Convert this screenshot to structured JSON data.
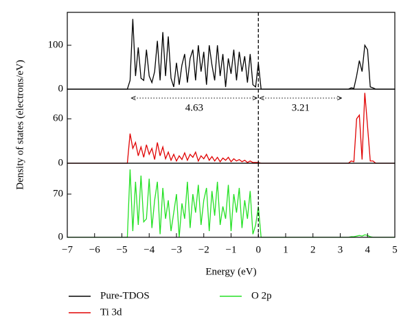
{
  "chart_data": [
    {
      "type": "line",
      "ylabel": "Density of states (electrons/eV)",
      "x": [
        -7,
        -4.8,
        -4.7,
        -4.6,
        -4.5,
        -4.4,
        -4.3,
        -4.2,
        -4.1,
        -4.0,
        -3.9,
        -3.8,
        -3.7,
        -3.6,
        -3.5,
        -3.4,
        -3.3,
        -3.2,
        -3.1,
        -3.0,
        -2.9,
        -2.8,
        -2.7,
        -2.6,
        -2.5,
        -2.4,
        -2.3,
        -2.2,
        -2.1,
        -2.0,
        -1.9,
        -1.8,
        -1.7,
        -1.6,
        -1.5,
        -1.4,
        -1.3,
        -1.2,
        -1.1,
        -1.0,
        -0.9,
        -0.8,
        -0.7,
        -0.6,
        -0.5,
        -0.4,
        -0.3,
        -0.2,
        -0.1,
        0,
        0.1,
        3.3,
        3.4,
        3.5,
        3.6,
        3.7,
        3.8,
        3.9,
        4.0,
        4.1,
        4.2,
        4.3,
        5
      ],
      "series": [
        {
          "name": "Pure-TDOS",
          "color": "#000000",
          "values": [
            0,
            0,
            20,
            160,
            30,
            95,
            25,
            20,
            90,
            30,
            15,
            40,
            110,
            20,
            130,
            30,
            120,
            25,
            5,
            60,
            10,
            55,
            80,
            15,
            70,
            90,
            20,
            100,
            40,
            85,
            10,
            100,
            55,
            20,
            100,
            30,
            80,
            5,
            70,
            35,
            90,
            20,
            85,
            40,
            75,
            15,
            80,
            10,
            5,
            60,
            0,
            0,
            3,
            2,
            30,
            65,
            40,
            100,
            90,
            5,
            3,
            0,
            0
          ]
        }
      ],
      "xlim": [
        -7,
        5
      ],
      "ylim": [
        0,
        175
      ],
      "yticks": [
        0,
        100
      ],
      "vline": 0
    },
    {
      "type": "line",
      "x": [
        -7,
        -4.8,
        -4.7,
        -4.6,
        -4.5,
        -4.4,
        -4.3,
        -4.2,
        -4.1,
        -4.0,
        -3.9,
        -3.8,
        -3.7,
        -3.6,
        -3.5,
        -3.4,
        -3.3,
        -3.2,
        -3.1,
        -3.0,
        -2.9,
        -2.8,
        -2.7,
        -2.6,
        -2.5,
        -2.4,
        -2.3,
        -2.2,
        -2.1,
        -2.0,
        -1.9,
        -1.8,
        -1.7,
        -1.6,
        -1.5,
        -1.4,
        -1.3,
        -1.2,
        -1.1,
        -1.0,
        -0.9,
        -0.8,
        -0.7,
        -0.6,
        -0.5,
        -0.4,
        -0.3,
        -0.2,
        -0.1,
        0,
        0.1,
        3.3,
        3.4,
        3.5,
        3.6,
        3.7,
        3.8,
        3.9,
        4.0,
        4.1,
        4.2,
        4.3,
        5
      ],
      "series": [
        {
          "name": "Ti 3d",
          "color": "#e00000",
          "values": [
            0,
            0,
            40,
            20,
            28,
            10,
            22,
            8,
            25,
            12,
            20,
            5,
            28,
            10,
            22,
            6,
            15,
            4,
            12,
            3,
            10,
            5,
            14,
            4,
            12,
            8,
            15,
            3,
            10,
            6,
            12,
            4,
            9,
            3,
            8,
            2,
            7,
            4,
            8,
            2,
            6,
            3,
            5,
            2,
            4,
            1,
            3,
            1,
            1,
            1,
            0,
            0,
            3,
            2,
            60,
            65,
            5,
            95,
            50,
            3,
            3,
            0,
            0
          ]
        }
      ],
      "xlim": [
        -7,
        5
      ],
      "ylim": [
        0,
        100
      ],
      "yticks": [
        0,
        60
      ],
      "vline": 0,
      "annotations": [
        {
          "text": "4.63",
          "x": [
            -4.7,
            0
          ]
        },
        {
          "text": "3.21",
          "x": [
            0,
            3.1
          ]
        }
      ]
    },
    {
      "type": "line",
      "xlabel": "Energy (eV)",
      "x": [
        -7,
        -4.8,
        -4.7,
        -4.6,
        -4.5,
        -4.4,
        -4.3,
        -4.2,
        -4.1,
        -4.0,
        -3.9,
        -3.8,
        -3.7,
        -3.6,
        -3.5,
        -3.4,
        -3.3,
        -3.2,
        -3.1,
        -3.0,
        -2.9,
        -2.8,
        -2.7,
        -2.6,
        -2.5,
        -2.4,
        -2.3,
        -2.2,
        -2.1,
        -2.0,
        -1.9,
        -1.8,
        -1.7,
        -1.6,
        -1.5,
        -1.4,
        -1.3,
        -1.2,
        -1.1,
        -1.0,
        -0.9,
        -0.8,
        -0.7,
        -0.6,
        -0.5,
        -0.4,
        -0.3,
        -0.2,
        -0.1,
        0,
        0.1,
        3.3,
        3.4,
        3.5,
        3.6,
        3.7,
        3.8,
        3.9,
        4.0,
        4.1,
        4.2,
        4.3,
        5
      ],
      "series": [
        {
          "name": "O 2p",
          "color": "#22e022",
          "values": [
            0,
            0,
            110,
            10,
            90,
            20,
            100,
            25,
            30,
            95,
            15,
            60,
            90,
            5,
            80,
            30,
            60,
            10,
            40,
            70,
            0,
            55,
            30,
            90,
            15,
            70,
            40,
            85,
            20,
            60,
            80,
            10,
            75,
            35,
            90,
            20,
            50,
            30,
            85,
            10,
            70,
            40,
            80,
            15,
            60,
            30,
            75,
            5,
            20,
            50,
            0,
            0,
            1,
            1,
            2,
            3,
            2,
            4,
            3,
            1,
            0,
            0,
            0
          ]
        }
      ],
      "xlim": [
        -7,
        5
      ],
      "ylim": [
        0,
        120
      ],
      "yticks": [
        0,
        70
      ],
      "vline": 0,
      "xticks": [
        {
          "value": -7,
          "label": "−7"
        },
        {
          "value": -6,
          "label": "−6"
        },
        {
          "value": -5,
          "label": "−5"
        },
        {
          "value": -4,
          "label": "−4"
        },
        {
          "value": -3,
          "label": "−3"
        },
        {
          "value": -2,
          "label": "−2"
        },
        {
          "value": -1,
          "label": "−1"
        },
        0,
        1,
        2,
        3,
        4,
        5
      ]
    }
  ]
}
